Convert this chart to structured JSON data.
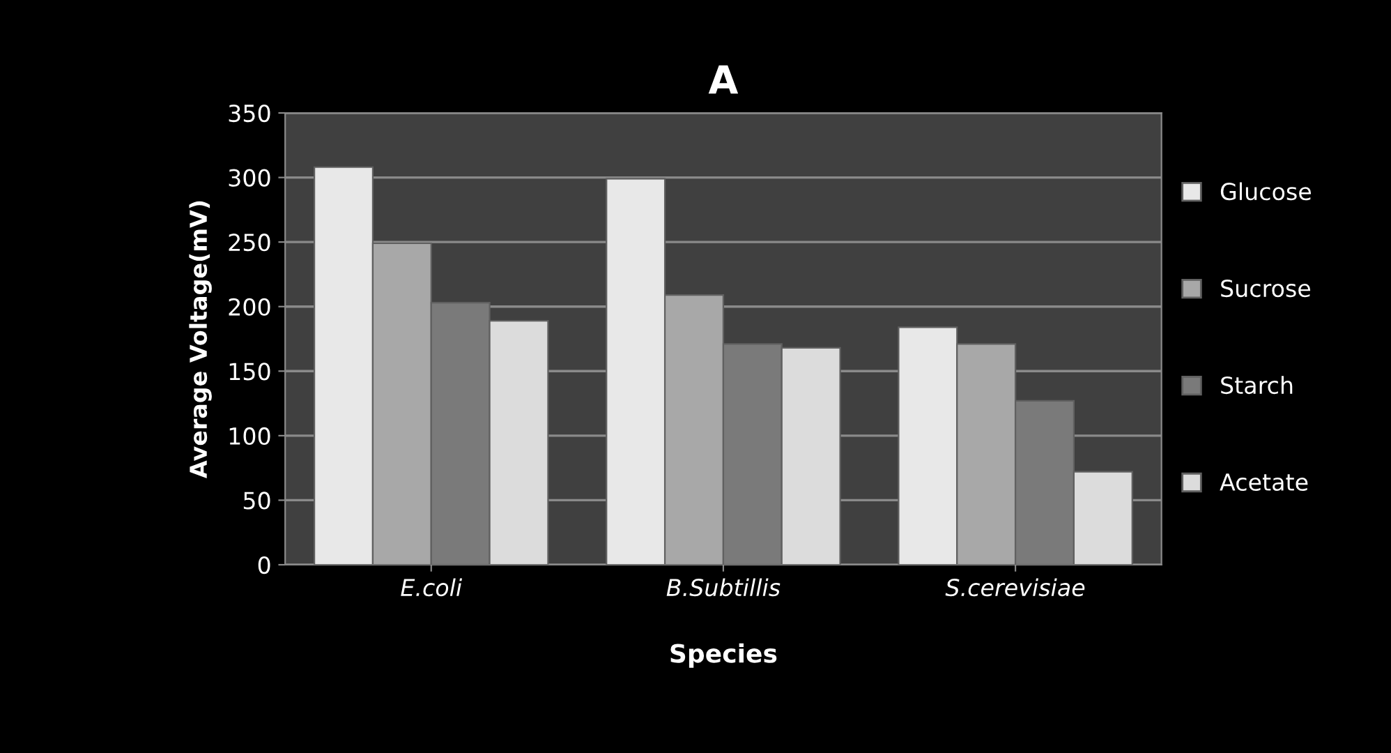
{
  "chart_data": {
    "type": "bar",
    "title": "A",
    "xlabel": "Species",
    "ylabel": "Average Voltage(mV)",
    "categories": [
      "E.coli",
      "B.Subtillis",
      "S.cerevisiae"
    ],
    "series": [
      {
        "name": "Glucose",
        "color": "#e8e8e8",
        "values": [
          308,
          299,
          184
        ]
      },
      {
        "name": "Sucrose",
        "color": "#a8a8a8",
        "values": [
          249,
          209,
          171
        ]
      },
      {
        "name": "Starch",
        "color": "#7a7a7a",
        "values": [
          203,
          171,
          127
        ]
      },
      {
        "name": "Acetate",
        "color": "#dcdcdc",
        "values": [
          189,
          168,
          72
        ]
      }
    ],
    "ylim": [
      0,
      350
    ],
    "yticks": [
      0,
      50,
      100,
      150,
      200,
      250,
      300,
      350
    ],
    "grid": "y",
    "legend": "right"
  }
}
